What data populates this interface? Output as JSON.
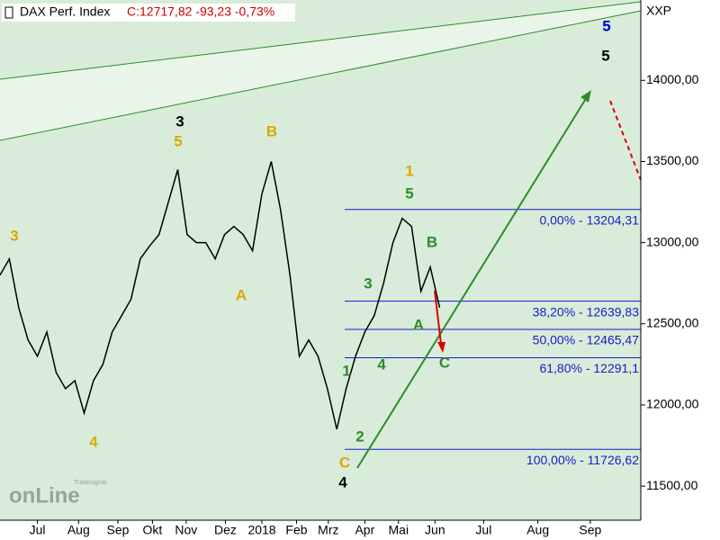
{
  "chart_data": {
    "type": "line",
    "title": "DAX Perf. Index",
    "subtitle": "C:12717,82 -93,23 -0,73%",
    "symbol": "XXP",
    "branding": [
      "Tradesignal",
      "onLine"
    ],
    "color": "#000000",
    "x": [
      0,
      1,
      2,
      3,
      4,
      5,
      6,
      7,
      8,
      9,
      10,
      11,
      12,
      13,
      14,
      15,
      16,
      17,
      18,
      19,
      20,
      21,
      22,
      23,
      24,
      25,
      26,
      27,
      28,
      29,
      30,
      31,
      32,
      33,
      34,
      35,
      36,
      37,
      38,
      39,
      40,
      41,
      42,
      43,
      44,
      45,
      46,
      47
    ],
    "values": [
      12800,
      12900,
      12600,
      12400,
      12300,
      12450,
      12200,
      12100,
      12150,
      11950,
      12150,
      12250,
      12450,
      12550,
      12650,
      12900,
      12980,
      13050,
      13250,
      13450,
      13050,
      13000,
      13000,
      12900,
      13050,
      13100,
      13050,
      12950,
      13300,
      13500,
      13200,
      12800,
      12300,
      12400,
      12300,
      12100,
      11850,
      12100,
      12300,
      12450,
      12550,
      12750,
      13000,
      13150,
      13100,
      12700,
      12850,
      12600
    ],
    "xlim": [
      0,
      68.5
    ],
    "xticks": [
      {
        "value": 4.0,
        "label": "Jul"
      },
      {
        "value": 8.4,
        "label": "Aug"
      },
      {
        "value": 12.6,
        "label": "Sep"
      },
      {
        "value": 16.3,
        "label": "Okt"
      },
      {
        "value": 19.9,
        "label": "Nov"
      },
      {
        "value": 24.1,
        "label": "Dez"
      },
      {
        "value": 28.0,
        "label": "2018"
      },
      {
        "value": 31.7,
        "label": "Feb"
      },
      {
        "value": 35.1,
        "label": "Mrz"
      },
      {
        "value": 39.0,
        "label": "Apr"
      },
      {
        "value": 42.6,
        "label": "Mai"
      },
      {
        "value": 46.5,
        "label": "Jun"
      },
      {
        "value": 51.7,
        "label": "Jul"
      },
      {
        "value": 57.5,
        "label": "Aug"
      },
      {
        "value": 63.1,
        "label": "Sep"
      }
    ],
    "ylim": [
      11290,
      14495
    ],
    "yticks": [
      {
        "value": 11500,
        "label": "11500,00"
      },
      {
        "value": 12000,
        "label": "12000,00"
      },
      {
        "value": 12500,
        "label": "12500,00"
      },
      {
        "value": 13000,
        "label": "13000,00"
      },
      {
        "value": 13500,
        "label": "13500,00"
      },
      {
        "value": 14000,
        "label": "14000,00"
      }
    ],
    "levels": [
      {
        "value": 13204.31,
        "label": "0,00% - 13204,31"
      },
      {
        "value": 12639.83,
        "label": "38,20% - 12639,83"
      },
      {
        "value": 12465.47,
        "label": "50,00% - 12465,47"
      },
      {
        "value": 12291.1,
        "label": "61,80% - 12291,1"
      },
      {
        "value": 11726.62,
        "label": "100,00% - 11726,62"
      }
    ],
    "levels_color": "#1a1acc",
    "annotations": [
      {
        "text": "3",
        "color": "#d9a800"
      },
      {
        "text": "4",
        "color": "#d9a800"
      },
      {
        "text": "3",
        "color": "#000000"
      },
      {
        "text": "5",
        "color": "#d9a800"
      },
      {
        "text": "B",
        "color": "#d9a800"
      },
      {
        "text": "A",
        "color": "#d9a800"
      },
      {
        "text": "1",
        "color": "#d9a800"
      },
      {
        "text": "5",
        "color": "#2e8b2e"
      },
      {
        "text": "B",
        "color": "#2e8b2e"
      },
      {
        "text": "3",
        "color": "#2e8b2e"
      },
      {
        "text": "A",
        "color": "#2e8b2e"
      },
      {
        "text": "4",
        "color": "#2e8b2e"
      },
      {
        "text": "C",
        "color": "#2e8b2e"
      },
      {
        "text": "1",
        "color": "#2e8b2e"
      },
      {
        "text": "2",
        "color": "#2e8b2e"
      },
      {
        "text": "C",
        "color": "#d9a800"
      },
      {
        "text": "4",
        "color": "#000000"
      },
      {
        "text": "5",
        "color": "#0000cc"
      },
      {
        "text": "5",
        "color": "#000000"
      }
    ]
  }
}
